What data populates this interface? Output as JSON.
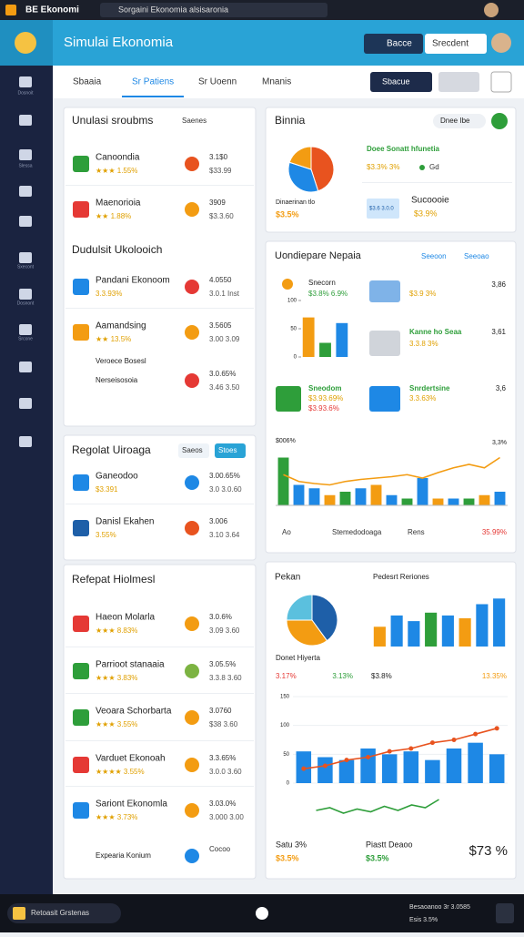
{
  "browser": {
    "app": "BE Ekonomi",
    "tab": "Sorgaini Ekonomia alsisaronia"
  },
  "header": {
    "title": "Simulai Ekonomia",
    "button": "Bacce",
    "search": "Srecdent"
  },
  "sidebar": [
    "Dosnoit",
    "Slessa",
    "Sxecont",
    "Dosnont",
    "Srcone"
  ],
  "tabs": [
    "Sbaaia",
    "Sr Patiens",
    "Sr Uoenn",
    "Mnanis"
  ],
  "toolbar_button": "Sbacue",
  "left_sections": [
    {
      "title": "Unulasi sroubms",
      "actions": [
        "Saenes"
      ],
      "items": [
        {
          "name": "Canoondia",
          "detail": "★★★ 1.55%",
          "value": "3.1$0",
          "note": "$33.99"
        },
        {
          "name": "Maenorioia",
          "detail": "★★ 1.88%",
          "value": "3909",
          "note": "$3.3.60"
        }
      ]
    },
    {
      "title": "Dudulsit Ukolooich",
      "items": [
        {
          "name": "Pandani Ekonoom",
          "detail": "3.3.93%",
          "value": "4.0550",
          "note": "3.0.1 Inst"
        },
        {
          "name": "Aamandsing",
          "detail": "★★ 13.5%",
          "value": "3.5605",
          "note": "3.00 3.09"
        },
        {
          "name": "Veroece Bosesl"
        },
        {
          "name": "Nerseisosoia",
          "value": "3.0.65%",
          "note": "3.46 3.50"
        }
      ]
    },
    {
      "title": "Regolat Uiroaga",
      "actions": [
        "Saeos",
        "Stoes"
      ],
      "items": [
        {
          "name": "Ganeodoo",
          "detail": "$3.391",
          "value": "3.00.65%",
          "note": "3.0 3.0.60"
        },
        {
          "name": "Danisl Ekahen",
          "detail": "3.55%",
          "value": "3.006",
          "note": "3.10 3.64"
        }
      ]
    },
    {
      "title": "Refepat Hiolmesl",
      "items": [
        {
          "name": "Haeon Molarla",
          "detail": "★★★ 8.83%",
          "value": "3.0.6%",
          "note": "3.09 3.60"
        },
        {
          "name": "Parrioot stanaaia",
          "detail": "★★★ 3.83%",
          "value": "3.05.5%",
          "note": "3.3.8 3.60"
        },
        {
          "name": "Veoara Schorbarta",
          "detail": "★★★ 3.55%",
          "value": "3.0760",
          "note": "$38 3.60"
        },
        {
          "name": "Varduet Ekonoah",
          "detail": "★★★★ 3.55%",
          "value": "3.3.65%",
          "note": "3.0.0 3.60"
        },
        {
          "name": "Sariont Ekonomla",
          "detail": "★★★ 3.73%",
          "value": "3.03.0%",
          "note": "3.000 3.00"
        },
        {
          "name": "Expearia Konium",
          "value": "Cocoo"
        }
      ]
    }
  ],
  "binnia": {
    "title": "Binnia",
    "pill": "Dnee Ibe",
    "pie": {
      "type": "pie",
      "values": [
        45,
        35,
        20
      ],
      "colors": [
        "#e8531f",
        "#1e88e5",
        "#f39c12"
      ]
    },
    "highlight": "Doee Sonatt hfunetia",
    "stat": "$3.3% 3%",
    "badge": "Gd",
    "item": "Sucoooie",
    "item_value": "$3.9%",
    "tag": "$3.6 3.0.0",
    "foot": "Dinaerinan tlo",
    "foot_value": "$3.5%"
  },
  "compare": {
    "title": "Uondiepare Nepaia",
    "tabs": [
      "Seeoon",
      "Seeoao"
    ],
    "mini": {
      "type": "bar",
      "values": [
        70,
        25,
        60
      ],
      "colors": [
        "#f39c12",
        "#2e9e3a",
        "#1e88e5"
      ],
      "ylim": [
        0,
        100
      ],
      "yticks": [
        0,
        50,
        100
      ]
    },
    "rows": [
      {
        "name": "Snecorn",
        "value": "$3.8% 6.9%"
      },
      {
        "name": "$3.9 3%",
        "value": "3,86"
      },
      {
        "name": "Kanne ho Seaa",
        "detail": "3.3.8 3%",
        "value": "3,61"
      },
      {
        "name": "Sneodom",
        "detail": "$3.93.69%",
        "value": "$3.93.6%"
      },
      {
        "name": "Snrdertsine",
        "detail": "3.3.63%",
        "value": "3,6"
      }
    ],
    "trend": {
      "type": "bar-line",
      "bars": [
        70,
        30,
        25,
        15,
        20,
        25,
        30,
        15,
        10,
        40,
        10,
        10,
        10,
        15,
        20
      ],
      "line": [
        45,
        35,
        32,
        30,
        35,
        38,
        40,
        42,
        45,
        40,
        48,
        55,
        60,
        55,
        70
      ],
      "colors": [
        "#2e9e3a",
        "#1e88e5",
        "#1e88e5",
        "#f39c12",
        "#2e9e3a",
        "#1e88e5",
        "#f39c12",
        "#1e88e5",
        "#2e9e3a",
        "#1e88e5",
        "#f39c12",
        "#1e88e5",
        "#2e9e3a",
        "#f39c12",
        "#1e88e5"
      ],
      "ylim": [
        0,
        100
      ],
      "top_label": "$006%",
      "right_label": "3,3%"
    },
    "legend": [
      "Ao",
      "Stemedodoaga",
      "Rens",
      "35.99%"
    ]
  },
  "report": {
    "title": "Pekan",
    "pie": {
      "type": "pie",
      "values": [
        40,
        35,
        25
      ],
      "colors": [
        "#1e5fa8",
        "#f39c12",
        "#5bc0de"
      ]
    },
    "bars_title": "Pedesrt Reriones",
    "bars": {
      "type": "bar",
      "values": [
        35,
        55,
        45,
        60,
        55,
        50,
        75,
        85
      ],
      "colors": [
        "#f39c12",
        "#1e88e5",
        "#1e88e5",
        "#2e9e3a",
        "#1e88e5",
        "#f39c12",
        "#1e88e5",
        "#1e88e5"
      ],
      "ylim": [
        0,
        100
      ]
    },
    "pie_label": "Donet Hiyerta",
    "pie_stat": "3.17%",
    "pie_stat2": "3.13%",
    "bars_stat": "$3.8%",
    "bars_stat2": "13.35%",
    "growth": {
      "type": "bar-line",
      "bars": [
        55,
        45,
        40,
        60,
        50,
        55,
        40,
        60,
        70,
        50
      ],
      "line": [
        25,
        30,
        40,
        45,
        55,
        60,
        70,
        75,
        85,
        95
      ],
      "ylim": [
        0,
        150
      ],
      "yticks": [
        0,
        50,
        100,
        150
      ]
    },
    "spark": {
      "type": "line",
      "values": [
        10,
        12,
        8,
        11,
        9,
        13,
        10,
        14,
        12,
        18
      ],
      "ylim": [
        0,
        20
      ]
    },
    "bottom": [
      "Satu 3%",
      "$3.5%",
      "Piastt Deaoo",
      "$3.5%",
      "$73 %"
    ]
  },
  "footer": {
    "label": "Retoasit Grstenas",
    "stats": [
      "Besaoanoo 3r 3.0585",
      "Esis 3.5%"
    ]
  }
}
